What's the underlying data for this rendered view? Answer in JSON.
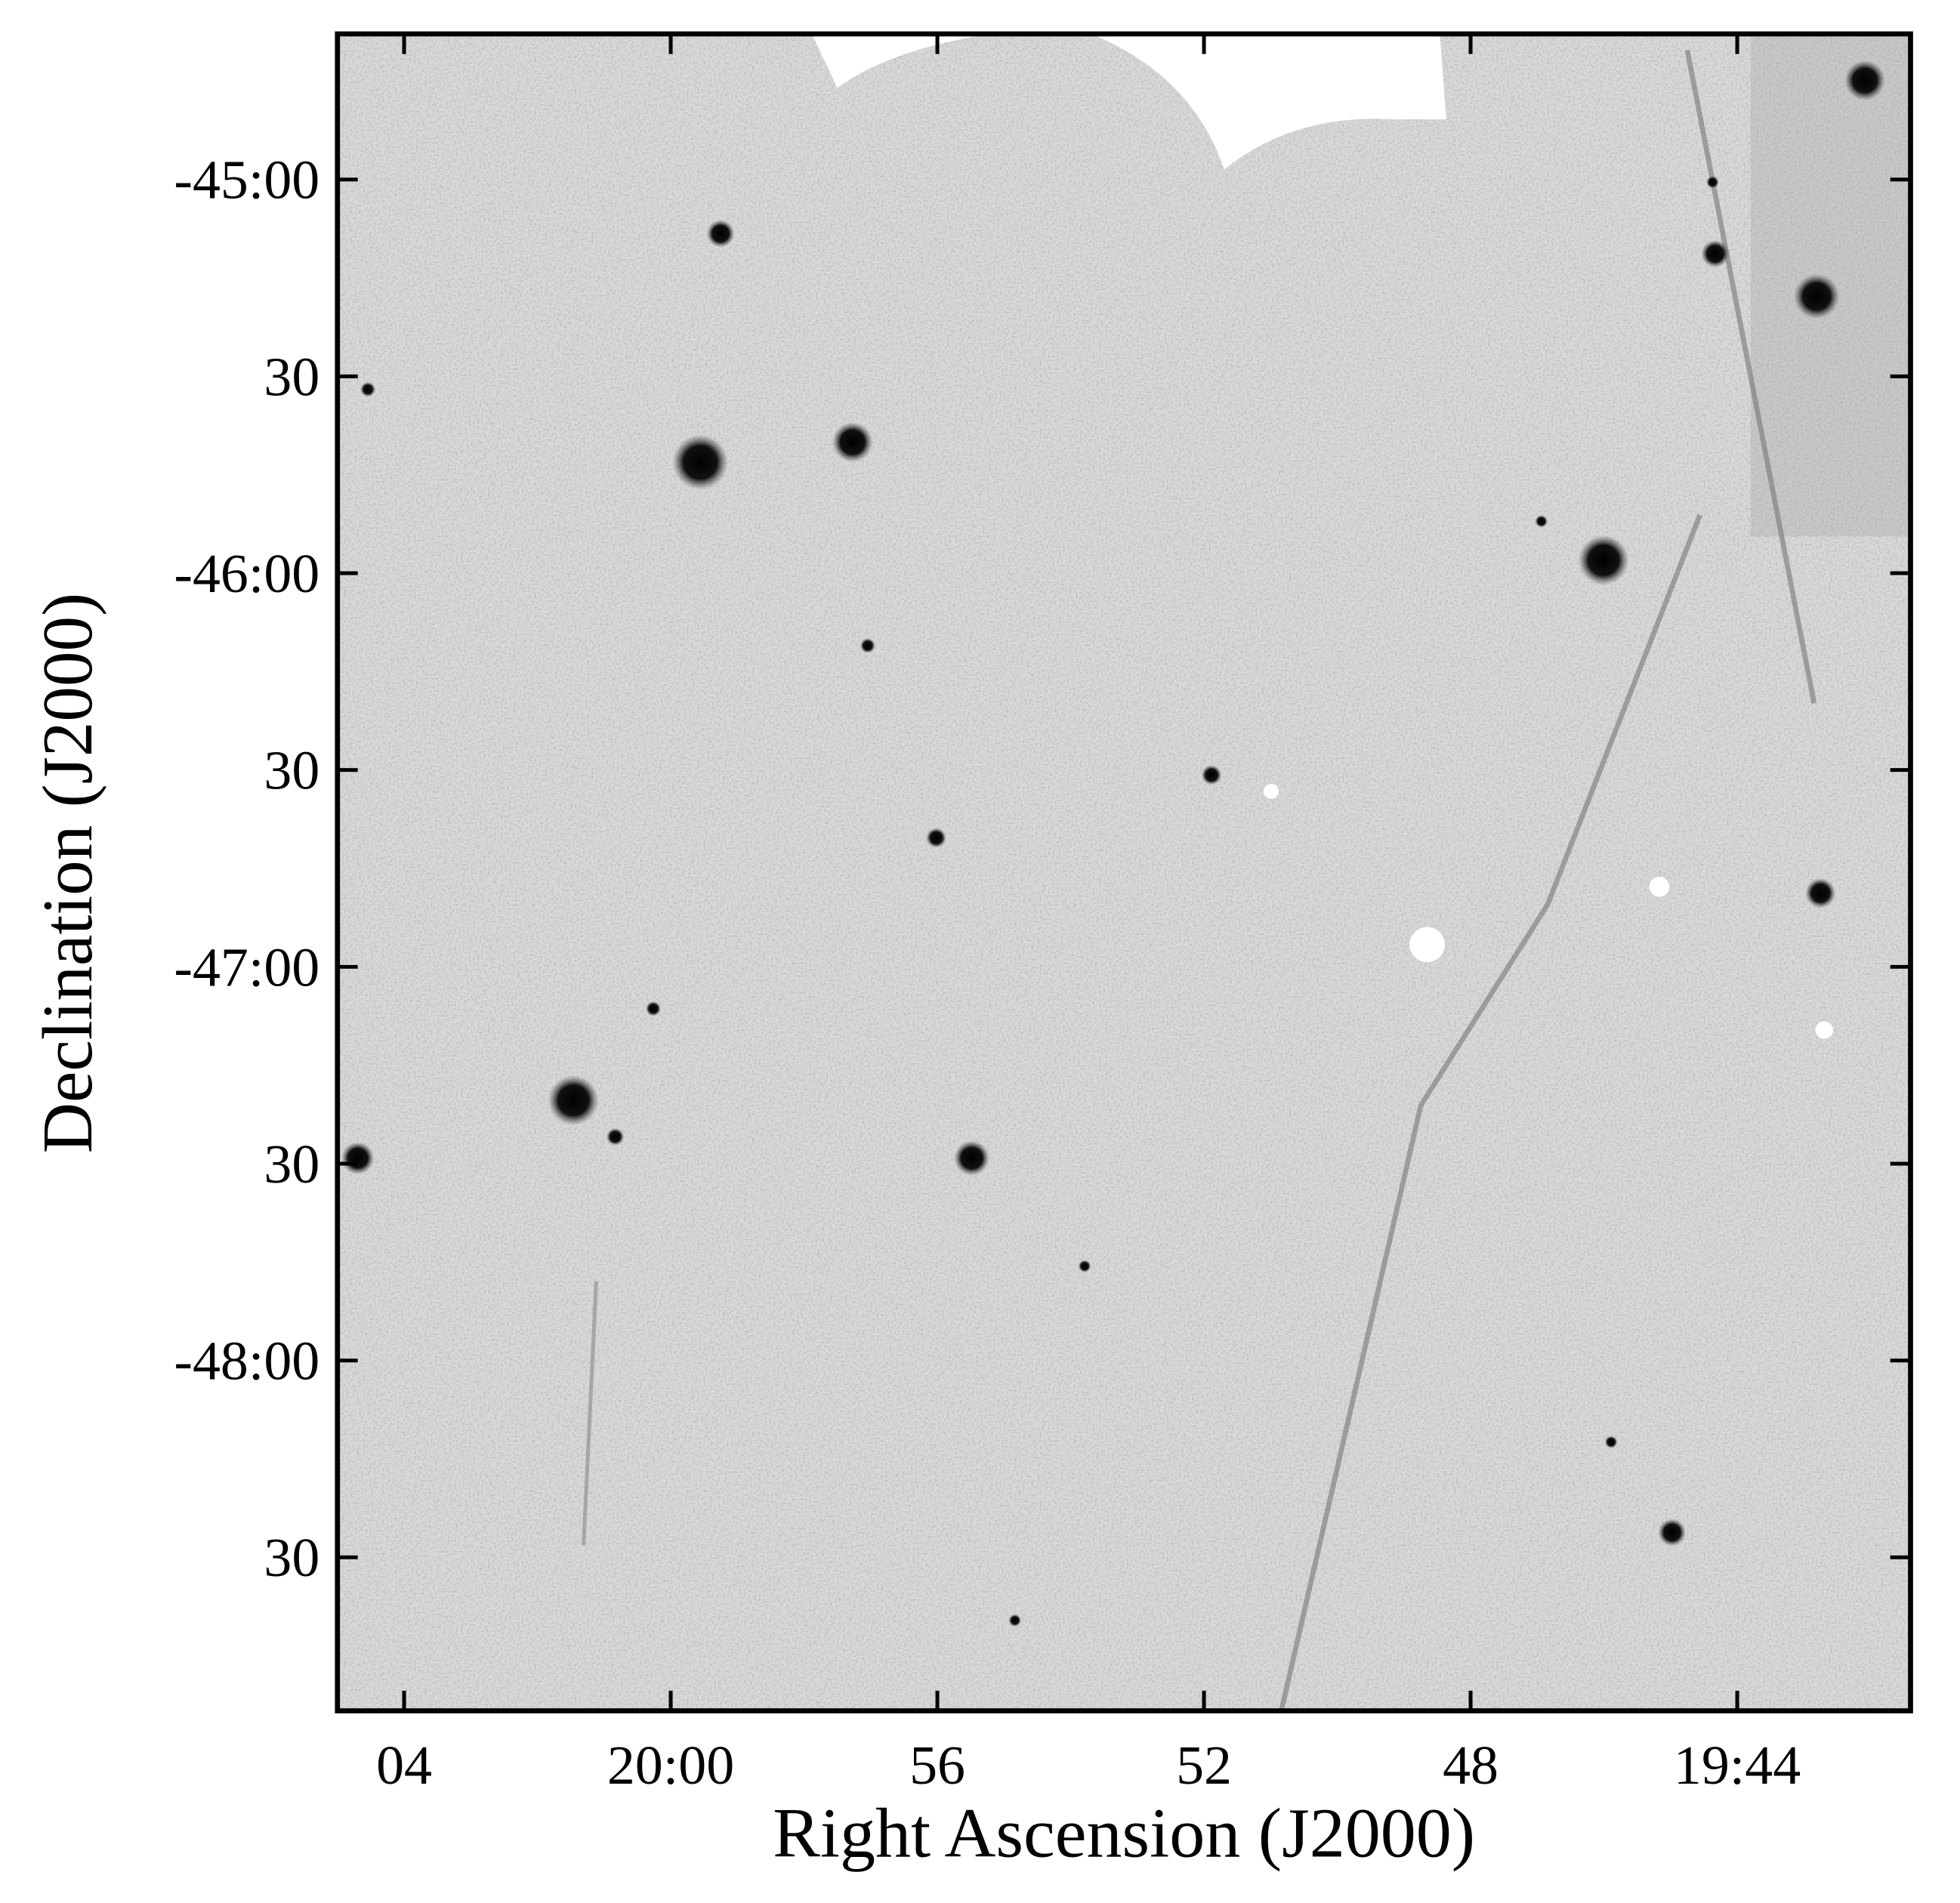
{
  "chart_data": {
    "type": "image",
    "xlabel": "Right Ascension (J2000)",
    "ylabel": "Declination (J2000)",
    "xlim": [
      1205,
      1181.4
    ],
    "ylim": [
      -48.89,
      -44.63
    ],
    "xticks": [
      {
        "value": 1204,
        "label": "04"
      },
      {
        "value": 1200,
        "label": "20:00"
      },
      {
        "value": 1196,
        "label": "56"
      },
      {
        "value": 1192,
        "label": "52"
      },
      {
        "value": 1188,
        "label": "48"
      },
      {
        "value": 1184,
        "label": "19:44"
      }
    ],
    "yticks": [
      {
        "value": -45,
        "label": "-45:00"
      },
      {
        "value": -45.5,
        "label": "30"
      },
      {
        "value": -46,
        "label": "-46:00"
      },
      {
        "value": -46.5,
        "label": "30"
      },
      {
        "value": -47,
        "label": "-47:00"
      },
      {
        "value": -47.5,
        "label": "30"
      },
      {
        "value": -48,
        "label": "-48:00"
      },
      {
        "value": -48.5,
        "label": "30"
      }
    ]
  }
}
